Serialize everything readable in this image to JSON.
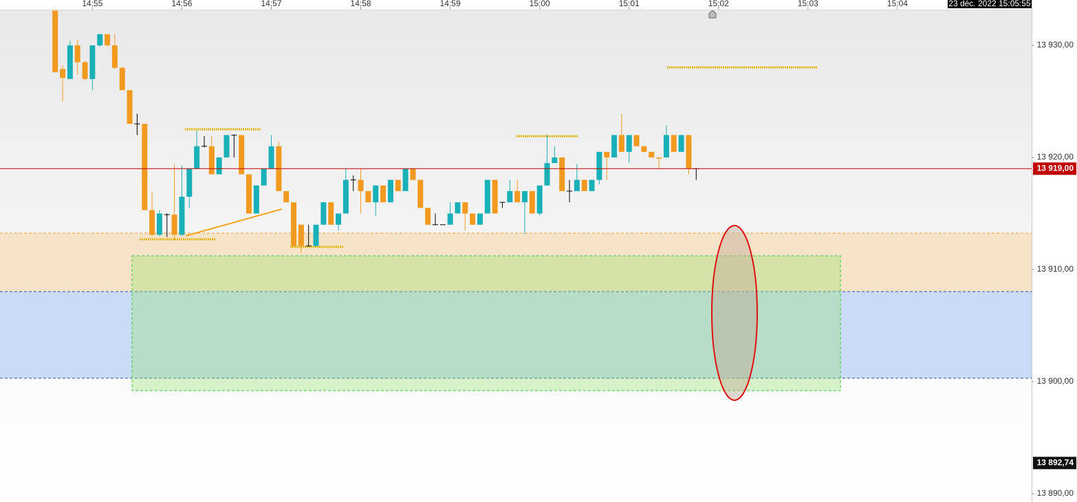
{
  "chart_data": {
    "type": "candlestick",
    "timestamp": "23 déc. 2022 15:05:55",
    "up_color": "#1ab0b8",
    "down_color": "#f29a1f",
    "flat_color": "#000000",
    "xlim": [
      53638,
      54330
    ],
    "xticks": [
      {
        "value": 53700,
        "label": "14:55"
      },
      {
        "value": 53760,
        "label": "14:56"
      },
      {
        "value": 53820,
        "label": "14:57"
      },
      {
        "value": 53880,
        "label": "14:58"
      },
      {
        "value": 53940,
        "label": "14:59"
      },
      {
        "value": 54000,
        "label": "15:00"
      },
      {
        "value": 54060,
        "label": "15:01"
      },
      {
        "value": 54120,
        "label": "15:02"
      },
      {
        "value": 54180,
        "label": "15:03"
      },
      {
        "value": 54240,
        "label": "15:04"
      }
    ],
    "ylim": [
      13889.26,
      13933.19
    ],
    "yticks": [
      {
        "value": 13930,
        "label": "13 930,00"
      },
      {
        "value": 13920,
        "label": "13 920,00"
      },
      {
        "value": 13910,
        "label": "13 910,00"
      },
      {
        "value": 13900,
        "label": "13 900,00"
      },
      {
        "value": 13890,
        "label": "13 890,00"
      }
    ],
    "price_markers": [
      {
        "value": 13919,
        "label": "13 919,00",
        "color": "#c00000",
        "line": true
      },
      {
        "value": 13892.74,
        "label": "13 892,74",
        "color": "#111111",
        "line": false
      }
    ],
    "x": [
      53675,
      53680,
      53685,
      53690,
      53695,
      53700,
      53705,
      53710,
      53715,
      53720,
      53725,
      53730,
      53735,
      53740,
      53745,
      53750,
      53755,
      53760,
      53765,
      53770,
      53775,
      53780,
      53785,
      53790,
      53795,
      53800,
      53805,
      53810,
      53815,
      53820,
      53825,
      53830,
      53835,
      53840,
      53845,
      53850,
      53855,
      53860,
      53865,
      53870,
      53875,
      53880,
      53885,
      53890,
      53895,
      53900,
      53905,
      53910,
      53915,
      53920,
      53925,
      53930,
      53935,
      53940,
      53945,
      53950,
      53955,
      53960,
      53965,
      53970,
      53975,
      53980,
      53985,
      53990,
      53995,
      54000,
      54005,
      54010,
      54015,
      54020,
      54025,
      54030,
      54035,
      54040,
      54045,
      54050,
      54055,
      54060,
      54065,
      54070,
      54075,
      54080,
      54085,
      54090,
      54095,
      54100,
      54105
    ],
    "open": [
      13933.1,
      13927.9,
      13927.0,
      13930.0,
      13928.5,
      13927.0,
      13930.0,
      13931.0,
      13930.0,
      13928.0,
      13926.0,
      13923.0,
      13923.0,
      13915.3,
      13913.1,
      13914.9,
      13914.9,
      13913.1,
      13916.5,
      13919.0,
      13921.0,
      13921.0,
      13918.5,
      13920.0,
      13922.0,
      13922.0,
      13918.5,
      13915.0,
      13917.5,
      13919.0,
      13921.0,
      13917.0,
      13916.0,
      13914.0,
      13912.1,
      13912.1,
      13914.0,
      13916.0,
      13914.0,
      13915.0,
      13918.0,
      13918.0,
      13917.0,
      13916.0,
      13917.5,
      13916.0,
      13918.0,
      13917.0,
      13919.0,
      13918.0,
      13915.5,
      13914.0,
      13914.0,
      13914.0,
      13915.0,
      13916.0,
      13915.0,
      13914.0,
      13915.0,
      13918.0,
      13916.0,
      13916.0,
      13917.0,
      13916.0,
      13917.0,
      13915.0,
      13917.5,
      13919.5,
      13920.0,
      13917.0,
      13917.0,
      13918.0,
      13917.0,
      13918.0,
      13920.5,
      13920.0,
      13922.0,
      13920.5,
      13922.0,
      13921.0,
      13920.5,
      13920.0,
      13920.0,
      13922.0,
      13920.5,
      13922.0,
      13919.0
    ],
    "high": [
      13933.1,
      13928.2,
      13930.4,
      13930.5,
      13928.6,
      13930.0,
      13931.0,
      13931.0,
      13931.0,
      13928.1,
      13926.0,
      13923.9,
      13923.0,
      13916.9,
      13915.3,
      13915.0,
      13919.4,
      13919.3,
      13919.0,
      13922.4,
      13921.9,
      13921.9,
      13920.0,
      13922.0,
      13922.0,
      13922.0,
      13918.5,
      13917.5,
      13919.0,
      13922.0,
      13921.4,
      13917.0,
      13916.0,
      13914.0,
      13914.0,
      13914.0,
      13916.0,
      13916.0,
      13915.0,
      13919.0,
      13918.4,
      13919.0,
      13917.0,
      13917.5,
      13917.5,
      13918.0,
      13918.0,
      13919.0,
      13919.0,
      13918.0,
      13915.5,
      13915.0,
      13914.0,
      13916.0,
      13916.0,
      13916.0,
      13915.0,
      13915.0,
      13918.0,
      13918.0,
      13916.0,
      13918.0,
      13918.0,
      13917.0,
      13917.0,
      13917.5,
      13922.0,
      13921.0,
      13920.0,
      13918.0,
      13919.4,
      13918.0,
      13918.0,
      13920.5,
      13920.5,
      13922.0,
      13923.9,
      13922.0,
      13922.0,
      13921.0,
      13920.5,
      13920.0,
      13922.9,
      13922.0,
      13922.0,
      13922.0,
      13919.0
    ],
    "low": [
      13927.6,
      13925.0,
      13927.0,
      13927.4,
      13926.9,
      13926.0,
      13929.9,
      13929.9,
      13927.9,
      13926.0,
      13923.0,
      13922.0,
      13915.3,
      13913.0,
      13913.0,
      13912.9,
      13912.6,
      13913.0,
      13915.5,
      13919.0,
      13920.9,
      13918.5,
      13918.5,
      13920.0,
      13920.0,
      13918.5,
      13915.0,
      13915.0,
      13917.5,
      13919.0,
      13917.0,
      13916.0,
      13912.1,
      13911.5,
      13912.1,
      13912.1,
      13914.0,
      13914.0,
      13913.5,
      13915.0,
      13917.0,
      13915.0,
      13916.0,
      13914.8,
      13916.0,
      13916.0,
      13917.0,
      13917.0,
      13918.0,
      13915.5,
      13914.0,
      13914.0,
      13914.0,
      13914.0,
      13915.0,
      13913.5,
      13914.0,
      13914.0,
      13915.0,
      13915.0,
      13915.5,
      13916.0,
      13916.0,
      13913.2,
      13915.0,
      13914.8,
      13917.5,
      13919.5,
      13917.0,
      13916.0,
      13917.0,
      13917.0,
      13917.0,
      13917.6,
      13918.0,
      13920.0,
      13920.5,
      13919.5,
      13921.0,
      13920.5,
      13920.0,
      13919.0,
      13920.0,
      13920.5,
      13920.5,
      13918.5,
      13918.0
    ],
    "close": [
      13927.6,
      13927.1,
      13930.0,
      13928.5,
      13927.0,
      13930.0,
      13931.0,
      13930.0,
      13928.0,
      13926.0,
      13923.0,
      13923.0,
      13915.3,
      13913.1,
      13915.0,
      13914.9,
      13913.1,
      13916.5,
      13919.0,
      13921.0,
      13921.0,
      13918.5,
      13920.0,
      13922.0,
      13922.0,
      13918.5,
      13915.0,
      13917.5,
      13919.0,
      13921.0,
      13917.0,
      13916.0,
      13912.1,
      13912.1,
      13912.1,
      13914.0,
      13916.0,
      13914.0,
      13915.0,
      13918.0,
      13918.0,
      13917.0,
      13916.0,
      13917.5,
      13916.0,
      13918.0,
      13917.0,
      13919.0,
      13918.0,
      13915.5,
      13914.0,
      13914.0,
      13914.0,
      13915.0,
      13916.0,
      13915.0,
      13914.0,
      13915.0,
      13918.0,
      13915.0,
      13916.0,
      13917.0,
      13916.0,
      13917.0,
      13915.0,
      13917.5,
      13919.5,
      13920.0,
      13917.0,
      13917.0,
      13918.0,
      13917.0,
      13918.0,
      13920.5,
      13920.0,
      13922.0,
      13920.5,
      13922.0,
      13921.0,
      13920.5,
      13920.0,
      13919.9,
      13922.0,
      13920.5,
      13922.0,
      13919.0,
      13919.0
    ]
  }
}
